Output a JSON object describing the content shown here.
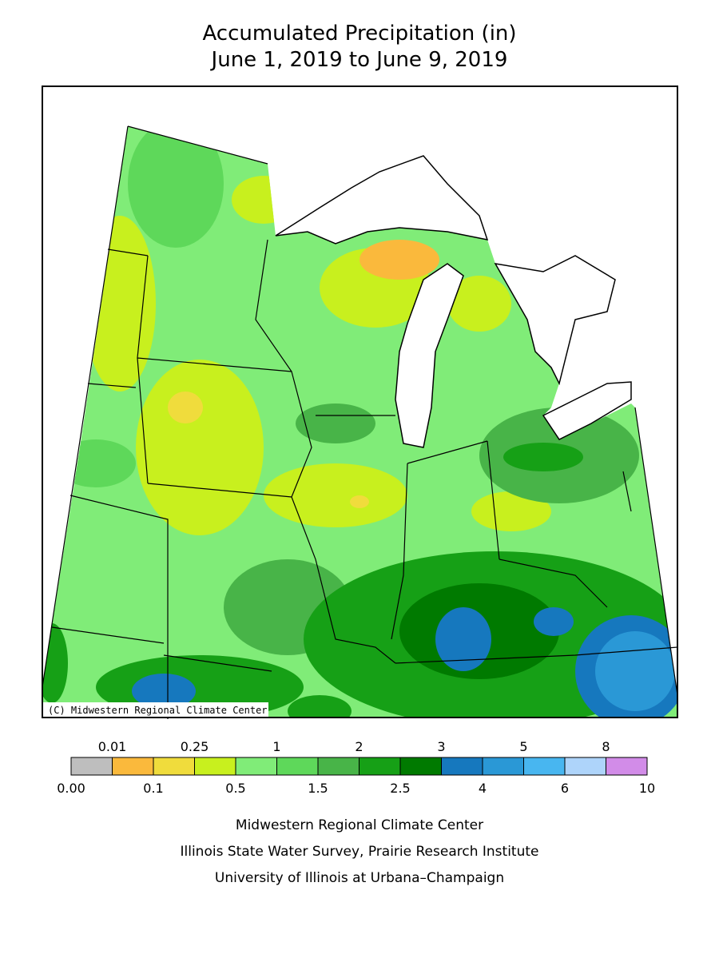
{
  "header": {
    "title": "Accumulated Precipitation (in)",
    "subtitle": "June 1, 2019 to June 9, 2019"
  },
  "map": {
    "credit": "(C) Midwestern Regional Climate Center"
  },
  "legend": {
    "breaks": [
      {
        "value": 0,
        "label": "0.00"
      },
      0.01,
      0.1,
      0.25,
      0.5,
      1,
      1.5,
      2,
      2.5,
      3,
      4,
      5,
      6,
      8,
      10
    ],
    "colors": [
      "#bebebe",
      "#fab93c",
      "#f0dc3c",
      "#c8f01e",
      "#80ec78",
      "#5ed85a",
      "#48b448",
      "#16a016",
      "#007a00",
      "#1678be",
      "#2a98d6",
      "#48b6f0",
      "#aed4fa",
      "#d28ce8"
    ]
  },
  "footer": {
    "lines": [
      "Midwestern Regional Climate Center",
      "Illinois State Water Survey, Prairie Research Institute",
      "University of Illinois at Urbana–Champaign"
    ]
  }
}
